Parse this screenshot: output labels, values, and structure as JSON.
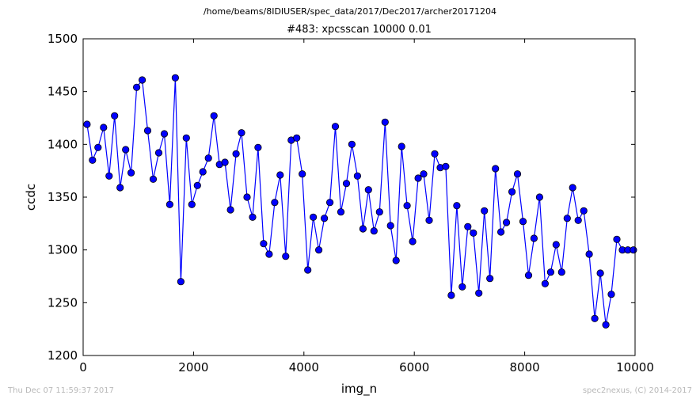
{
  "figure": {
    "suptitle": "/home/beams/8IDIUSER/spec_data/2017/Dec2017/archer20171204",
    "timestamp": "Thu Dec 07 11:59:37 2017",
    "credit": "spec2nexus, (C) 2014-2017"
  },
  "chart_data": {
    "type": "line",
    "title": "#483: xpcsscan 10000 0.01",
    "xlabel": "img_n",
    "ylabel": "ccdc",
    "xlim": [
      0,
      10000
    ],
    "ylim": [
      1200,
      1500
    ],
    "xticks": [
      0,
      2000,
      4000,
      6000,
      8000,
      10000
    ],
    "yticks": [
      1200,
      1250,
      1300,
      1350,
      1400,
      1450,
      1500
    ],
    "grid": false,
    "marker": "circle",
    "color": "#0000ff",
    "series": [
      {
        "x": [
          70,
          170,
          270,
          370,
          470,
          570,
          670,
          770,
          870,
          970,
          1070,
          1170,
          1270,
          1370,
          1470,
          1570,
          1670,
          1770,
          1870,
          1970,
          2070,
          2170,
          2270,
          2370,
          2470,
          2570,
          2670,
          2770,
          2870,
          2970,
          3070,
          3170,
          3270,
          3370,
          3470,
          3570,
          3670,
          3770,
          3870,
          3970,
          4070,
          4170,
          4270,
          4370,
          4470,
          4570,
          4670,
          4770,
          4870,
          4970,
          5070,
          5170,
          5270,
          5370,
          5470,
          5570,
          5670,
          5770,
          5870,
          5970,
          6070,
          6170,
          6270,
          6370,
          6470,
          6570,
          6670,
          6770,
          6870,
          6970,
          7070,
          7170,
          7270,
          7370,
          7470,
          7570,
          7670,
          7770,
          7870,
          7970,
          8070,
          8170,
          8270,
          8370,
          8470,
          8570,
          8670,
          8770,
          8870,
          8970,
          9070,
          9170,
          9270,
          9370,
          9470,
          9570,
          9670,
          9770,
          9870,
          9970
        ],
        "values": [
          1419,
          1385,
          1397,
          1416,
          1370,
          1427,
          1359,
          1395,
          1373,
          1454,
          1461,
          1413,
          1367,
          1392,
          1410,
          1343,
          1463,
          1270,
          1406,
          1343,
          1361,
          1374,
          1387,
          1427,
          1381,
          1383,
          1338,
          1391,
          1411,
          1350,
          1331,
          1397,
          1306,
          1296,
          1345,
          1371,
          1294,
          1404,
          1406,
          1372,
          1281,
          1331,
          1300,
          1330,
          1345,
          1417,
          1336,
          1363,
          1400,
          1370,
          1320,
          1357,
          1318,
          1336,
          1421,
          1323,
          1290,
          1398,
          1342,
          1308,
          1368,
          1372,
          1328,
          1391,
          1378,
          1379,
          1257,
          1342,
          1265,
          1322,
          1316,
          1259,
          1337,
          1273,
          1377,
          1317,
          1326,
          1355,
          1372,
          1327,
          1276,
          1311,
          1350,
          1268,
          1279,
          1305,
          1279,
          1330,
          1359,
          1328,
          1337,
          1296,
          1235,
          1278,
          1229,
          1258,
          1310,
          1300,
          1300,
          1300
        ]
      }
    ]
  }
}
